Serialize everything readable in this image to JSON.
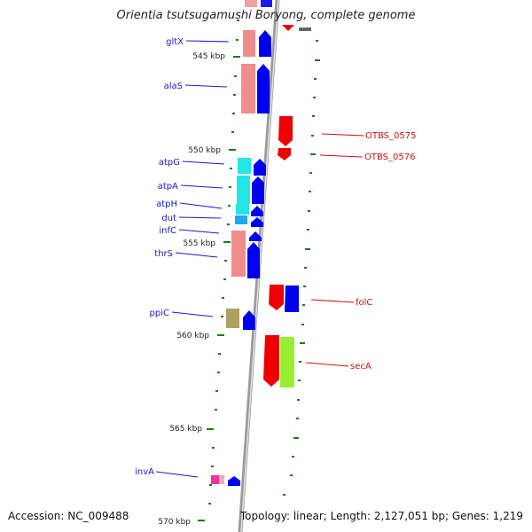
{
  "title": "Orientia tsutsugamushi Boryong, complete genome",
  "accession": "Accession: NC_009488",
  "summary": "Topology: linear; Length: 2,127,051 bp; Genes: 1,219",
  "colors": {
    "backbone": "#8a8a8a",
    "tick": "#1e7a1e",
    "label_left": "#1a1acc",
    "label_right": "#cc1111",
    "strand_plus": "#0000ee",
    "strand_minus": "#ee0000"
  },
  "kbp_labels": [
    "545 kbp",
    "550 kbp",
    "555 kbp",
    "560 kbp",
    "565 kbp",
    "570 kbp"
  ],
  "left_genes": [
    {
      "name": "gltX",
      "box_color": "#f08c8c"
    },
    {
      "name": "alaS",
      "box_color": "#f08c8c"
    },
    {
      "name": "atpG",
      "box_color": "#22e6e6"
    },
    {
      "name": "atpA",
      "box_color": "#22e6e6"
    },
    {
      "name": "atpH",
      "box_color": "#22e6e6"
    },
    {
      "name": "dut",
      "box_color": "#22aaee"
    },
    {
      "name": "infC",
      "box_color": "#f08c8c"
    },
    {
      "name": "thrS",
      "box_color": "#f08c8c"
    },
    {
      "name": "ppiC",
      "box_color": "#b0a060"
    },
    {
      "name": "invA",
      "box_color": "#ee3399"
    }
  ],
  "right_genes": [
    {
      "name": "OTBS_0575",
      "box_color": "#ee0000"
    },
    {
      "name": "OTBS_0576",
      "box_color": "#ee0000"
    },
    {
      "name": "folC",
      "box_color": "#ee0000"
    },
    {
      "name": "secA",
      "box_color": "#99ee33"
    }
  ]
}
